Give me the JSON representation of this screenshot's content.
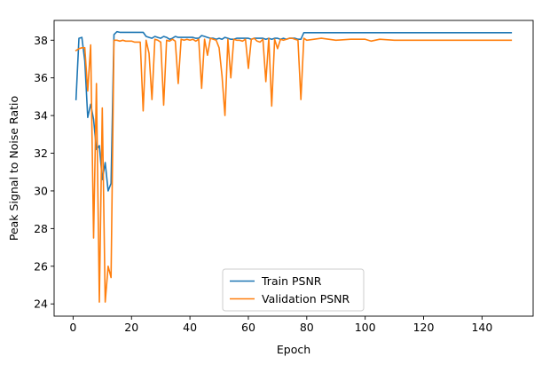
{
  "chart_data": {
    "type": "line",
    "title": "",
    "xlabel": "Epoch",
    "ylabel": "Peak Signal to Noise Ratio",
    "xlim": [
      -6.5,
      157.5
    ],
    "ylim": [
      23.35,
      39.05
    ],
    "xticks": [
      0,
      20,
      40,
      60,
      80,
      100,
      120,
      140
    ],
    "yticks": [
      24,
      26,
      28,
      30,
      32,
      34,
      36,
      38
    ],
    "grid": false,
    "legend_position": "bottom-center",
    "series": [
      {
        "name": "Train PSNR",
        "color": "#1f77b4",
        "x": [
          1,
          2,
          3,
          4,
          5,
          6,
          7,
          8,
          9,
          10,
          11,
          12,
          13,
          14,
          15,
          16,
          17,
          18,
          19,
          20,
          21,
          22,
          23,
          24,
          25,
          26,
          27,
          28,
          29,
          30,
          31,
          32,
          33,
          34,
          35,
          36,
          37,
          38,
          39,
          40,
          41,
          42,
          43,
          44,
          45,
          46,
          47,
          48,
          49,
          50,
          51,
          52,
          53,
          54,
          55,
          56,
          57,
          58,
          59,
          60,
          61,
          62,
          63,
          64,
          65,
          66,
          67,
          68,
          69,
          70,
          71,
          72,
          73,
          74,
          75,
          76,
          77,
          78,
          79,
          80,
          90,
          100,
          110,
          120,
          130,
          140,
          150
        ],
        "y": [
          34.85,
          38.1,
          38.15,
          36.9,
          33.9,
          34.6,
          33.8,
          32.2,
          32.4,
          30.6,
          31.5,
          30.0,
          30.4,
          38.3,
          38.45,
          38.42,
          38.42,
          38.42,
          38.42,
          38.42,
          38.42,
          38.42,
          38.42,
          38.42,
          38.2,
          38.15,
          38.1,
          38.2,
          38.15,
          38.1,
          38.2,
          38.15,
          38.05,
          38.1,
          38.2,
          38.15,
          38.15,
          38.15,
          38.15,
          38.15,
          38.15,
          38.1,
          38.1,
          38.25,
          38.2,
          38.15,
          38.1,
          38.1,
          38.05,
          38.1,
          38.05,
          38.15,
          38.1,
          38.05,
          38.05,
          38.1,
          38.1,
          38.1,
          38.1,
          38.1,
          38.05,
          38.1,
          38.1,
          38.1,
          38.1,
          38.05,
          38.1,
          38.05,
          38.1,
          38.1,
          38.05,
          38.1,
          38.05,
          38.1,
          38.1,
          38.1,
          38.05,
          38.05,
          38.4,
          38.4,
          38.4,
          38.4,
          38.4,
          38.4,
          38.4,
          38.4,
          38.4
        ]
      },
      {
        "name": "Validation PSNR",
        "color": "#ff7f0e",
        "x": [
          1,
          2,
          3,
          4,
          5,
          6,
          7,
          8,
          9,
          10,
          11,
          12,
          13,
          14,
          15,
          16,
          17,
          18,
          19,
          20,
          21,
          22,
          23,
          24,
          25,
          26,
          27,
          28,
          29,
          30,
          31,
          32,
          33,
          34,
          35,
          36,
          37,
          38,
          39,
          40,
          41,
          42,
          43,
          44,
          45,
          46,
          47,
          48,
          49,
          50,
          51,
          52,
          53,
          54,
          55,
          56,
          57,
          58,
          59,
          60,
          61,
          62,
          63,
          64,
          65,
          66,
          67,
          68,
          69,
          70,
          71,
          72,
          73,
          74,
          75,
          76,
          77,
          78,
          79,
          80,
          85,
          90,
          95,
          100,
          102,
          105,
          110,
          115,
          120,
          130,
          140,
          150
        ],
        "y": [
          37.45,
          37.55,
          37.6,
          37.6,
          35.3,
          37.75,
          27.5,
          35.7,
          24.1,
          34.4,
          24.1,
          26.0,
          25.4,
          38.0,
          38.0,
          37.95,
          38.0,
          37.95,
          37.95,
          37.95,
          37.9,
          37.9,
          37.9,
          34.25,
          38.0,
          37.3,
          34.85,
          38.05,
          38.0,
          37.9,
          34.55,
          38.0,
          37.95,
          38.05,
          37.95,
          35.7,
          38.05,
          38.0,
          38.05,
          38.0,
          38.05,
          37.95,
          38.05,
          35.45,
          38.05,
          37.2,
          38.1,
          38.05,
          38.0,
          37.6,
          36.1,
          34.0,
          38.05,
          36.0,
          38.05,
          38.0,
          38.0,
          37.95,
          38.05,
          36.5,
          38.05,
          38.1,
          37.95,
          37.9,
          38.05,
          35.8,
          38.1,
          34.5,
          38.05,
          37.55,
          38.05,
          38.0,
          38.05,
          38.1,
          38.1,
          38.05,
          38.0,
          34.85,
          38.1,
          38.0,
          38.1,
          38.0,
          38.05,
          38.05,
          37.95,
          38.05,
          38.0,
          38.0,
          38.0,
          38.0,
          38.0,
          38.0
        ]
      }
    ]
  }
}
